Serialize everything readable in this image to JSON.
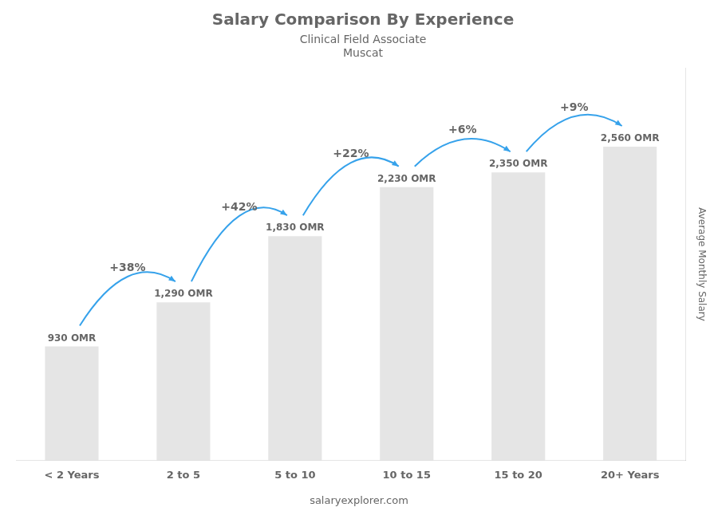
{
  "chart_data": {
    "type": "bar",
    "title": "Salary Comparison By Experience",
    "subtitle": "Clinical Field Associate",
    "city": "Muscat",
    "categories": [
      "< 2 Years",
      "2 to 5",
      "5 to 10",
      "10 to 15",
      "15 to 20",
      "20+ Years"
    ],
    "values": [
      930,
      1290,
      1830,
      2230,
      2350,
      2560
    ],
    "value_labels": [
      "930 OMR",
      "1,290 OMR",
      "1,830 OMR",
      "2,230 OMR",
      "2,350 OMR",
      "2,560 OMR"
    ],
    "data_labels": true,
    "annotations": [
      "+38%",
      "+42%",
      "+22%",
      "+6%",
      "+9%"
    ],
    "ylabel": "Average Monthly Salary",
    "footer": "salaryexplorer.com",
    "ylim": [
      0,
      3200
    ],
    "grid": false,
    "tick_labels": "x"
  }
}
